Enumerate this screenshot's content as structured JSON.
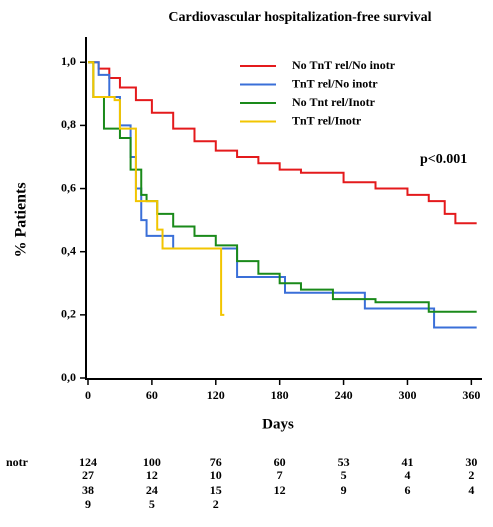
{
  "chart_data": {
    "type": "step",
    "title": "Cardiovascular hospitalization-free survival",
    "xlabel": "Days",
    "ylabel": "% Patients",
    "annotation": "p<0.001",
    "xlim": [
      0,
      370
    ],
    "xticks": [
      0,
      60,
      120,
      180,
      240,
      300,
      360
    ],
    "ylim": [
      0,
      1.08
    ],
    "yticks": [
      {
        "value": 0,
        "label": "0,0"
      },
      {
        "value": 0.2,
        "label": "0,2"
      },
      {
        "value": 0.4,
        "label": "0,4"
      },
      {
        "value": 0.6,
        "label": "0,6"
      },
      {
        "value": 0.8,
        "label": "0,8"
      },
      {
        "value": 1.0,
        "label": "1,0"
      }
    ],
    "series": [
      {
        "name": "No TnT rel/No inotr",
        "color": "#e41a1c",
        "x": [
          0,
          10,
          20,
          30,
          45,
          60,
          80,
          100,
          120,
          140,
          160,
          180,
          200,
          240,
          270,
          300,
          320,
          335,
          345,
          365
        ],
        "values": [
          1.0,
          0.98,
          0.95,
          0.92,
          0.88,
          0.84,
          0.79,
          0.75,
          0.72,
          0.7,
          0.68,
          0.66,
          0.65,
          0.62,
          0.6,
          0.58,
          0.56,
          0.52,
          0.49,
          0.49
        ]
      },
      {
        "name": "TnT rel/No inotr",
        "color": "#3a6fd8",
        "x": [
          0,
          10,
          20,
          30,
          40,
          45,
          50,
          55,
          75,
          80,
          130,
          140,
          170,
          185,
          250,
          260,
          320,
          325,
          365
        ],
        "values": [
          1.0,
          0.96,
          0.89,
          0.8,
          0.7,
          0.6,
          0.5,
          0.45,
          0.45,
          0.41,
          0.41,
          0.32,
          0.32,
          0.27,
          0.27,
          0.22,
          0.22,
          0.16,
          0.16
        ]
      },
      {
        "name": "No Tnt rel/Inotr",
        "color": "#1a8a1a",
        "x": [
          0,
          5,
          15,
          30,
          40,
          50,
          55,
          65,
          80,
          100,
          120,
          140,
          160,
          180,
          200,
          230,
          270,
          320,
          365
        ],
        "values": [
          1.0,
          0.89,
          0.79,
          0.76,
          0.66,
          0.58,
          0.56,
          0.52,
          0.48,
          0.45,
          0.42,
          0.37,
          0.33,
          0.3,
          0.28,
          0.25,
          0.24,
          0.21,
          0.21
        ]
      },
      {
        "name": "TnT rel/Inotr",
        "color": "#f2c500",
        "x": [
          0,
          5,
          25,
          30,
          45,
          60,
          65,
          70,
          120,
          125,
          128
        ],
        "values": [
          1.0,
          0.89,
          0.88,
          0.79,
          0.56,
          0.56,
          0.47,
          0.41,
          0.41,
          0.2,
          0.2
        ]
      }
    ],
    "risk_table": {
      "rows": [
        {
          "label": "notr",
          "values": [
            124,
            100,
            76,
            60,
            53,
            41,
            30
          ]
        },
        {
          "values": [
            27,
            12,
            10,
            7,
            5,
            4,
            2
          ]
        },
        {
          "values": [
            38,
            24,
            15,
            12,
            9,
            6,
            4
          ]
        },
        {
          "values": [
            9,
            5,
            2
          ]
        }
      ]
    }
  }
}
